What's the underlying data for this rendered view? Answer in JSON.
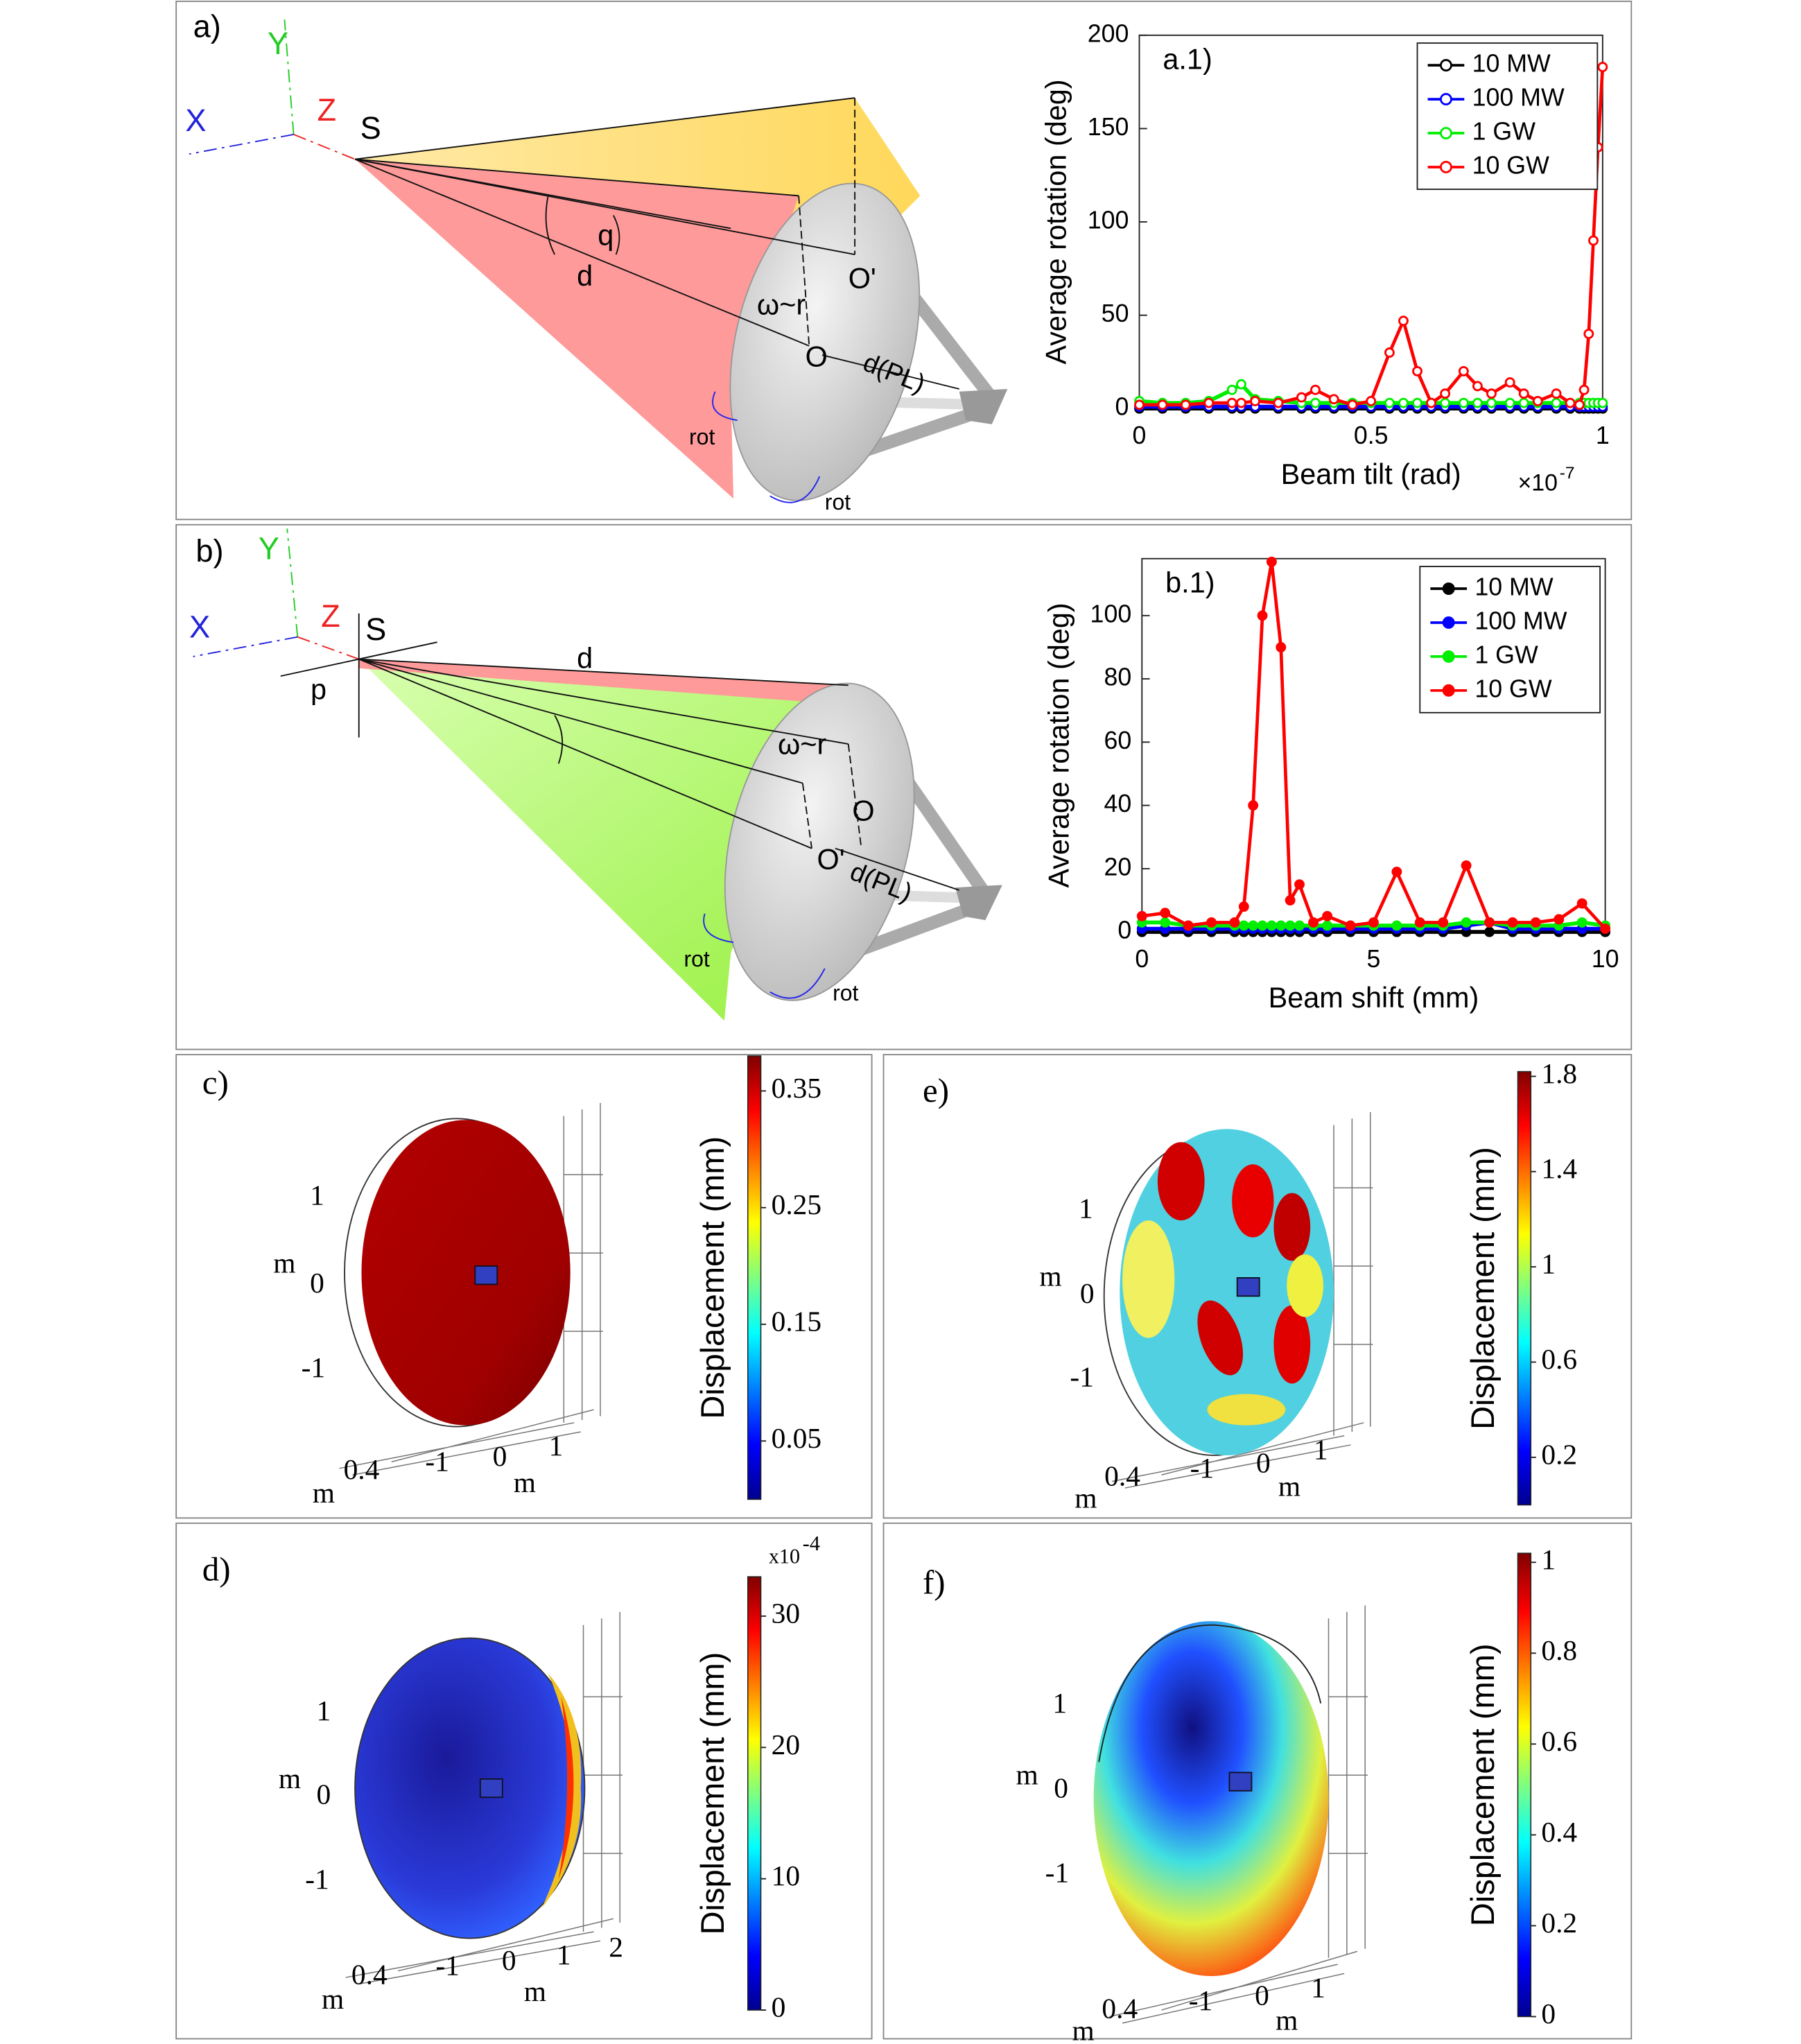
{
  "chart_data": [
    {
      "type": "line",
      "title": "a.1)",
      "xlabel": "Beam tilt (rad)",
      "ylabel": "Average rotation (deg)",
      "xscale_label": "×10",
      "xscale_exponent": "-7",
      "marker": "open",
      "legend": "upper right",
      "xlim": [
        0,
        1
      ],
      "xticks": [
        0,
        0.5,
        1
      ],
      "ylim": [
        0,
        200
      ],
      "yticks": [
        0,
        50,
        100,
        150,
        200
      ],
      "x": [
        0,
        0.05,
        0.1,
        0.15,
        0.2,
        0.22,
        0.25,
        0.3,
        0.35,
        0.38,
        0.42,
        0.46,
        0.5,
        0.54,
        0.57,
        0.6,
        0.63,
        0.66,
        0.7,
        0.73,
        0.76,
        0.8,
        0.83,
        0.86,
        0.9,
        0.93,
        0.95,
        0.96,
        0.97,
        0.98,
        0.99,
        1.0
      ],
      "series": [
        {
          "name": "10 MW",
          "color": "#000000",
          "values": [
            0,
            0,
            0,
            0,
            0,
            0,
            0,
            0,
            0,
            0,
            0,
            0,
            0,
            0,
            0,
            0,
            0,
            0,
            0,
            0,
            0,
            0,
            0,
            0,
            0,
            0,
            0,
            0,
            0,
            0,
            0,
            0
          ]
        },
        {
          "name": "100 MW",
          "color": "#0000ff",
          "values": [
            1,
            1,
            1,
            1,
            1,
            1,
            1,
            1,
            1,
            1,
            1,
            1,
            1,
            1,
            1,
            1,
            1,
            1,
            1,
            1,
            1,
            1,
            1,
            1,
            1,
            1,
            1,
            1,
            1,
            1,
            1,
            1
          ]
        },
        {
          "name": "1 GW",
          "color": "#00ee00",
          "values": [
            4,
            3,
            3,
            4,
            10,
            13,
            5,
            4,
            3,
            3,
            3,
            3,
            3,
            3,
            3,
            3,
            3,
            3,
            3,
            3,
            3,
            3,
            3,
            3,
            3,
            3,
            3,
            3,
            3,
            3,
            3,
            3
          ]
        },
        {
          "name": "10 GW",
          "color": "#ff0000",
          "values": [
            2,
            2,
            2,
            3,
            3,
            3,
            4,
            3,
            6,
            10,
            5,
            2,
            4,
            30,
            47,
            20,
            3,
            8,
            20,
            12,
            8,
            14,
            8,
            4,
            8,
            3,
            2,
            10,
            40,
            90,
            140,
            183
          ]
        }
      ]
    },
    {
      "type": "line",
      "title": "b.1)",
      "xlabel": "Beam shift (mm)",
      "ylabel": "Average rotation (deg)",
      "marker": "filled",
      "legend": "upper right",
      "xlim": [
        0,
        10
      ],
      "xticks": [
        0,
        5,
        10
      ],
      "ylim": [
        0,
        118
      ],
      "yticks": [
        0,
        20,
        40,
        60,
        80,
        100
      ],
      "x": [
        0,
        0.5,
        1,
        1.5,
        2,
        2.2,
        2.4,
        2.6,
        2.8,
        3.0,
        3.2,
        3.4,
        3.7,
        4,
        4.5,
        5,
        5.5,
        6,
        6.5,
        7,
        7.5,
        8,
        8.5,
        9,
        9.5,
        10
      ],
      "series": [
        {
          "name": "10 MW",
          "color": "#000000",
          "values": [
            0,
            0,
            0,
            0,
            0,
            0,
            0,
            0,
            0,
            0,
            0,
            0,
            0,
            0,
            0,
            0,
            0,
            0,
            0,
            0,
            0,
            0,
            0,
            0,
            0,
            0
          ]
        },
        {
          "name": "100 MW",
          "color": "#0000ff",
          "values": [
            1,
            1,
            1,
            1,
            1,
            1,
            1,
            1,
            1,
            1,
            1,
            1,
            1,
            1,
            1,
            1,
            1,
            1,
            1,
            2,
            3,
            1,
            1,
            1,
            1,
            1
          ]
        },
        {
          "name": "1 GW",
          "color": "#00ee00",
          "values": [
            3,
            3,
            2,
            2,
            2,
            2,
            2,
            2,
            2,
            2,
            2,
            2,
            2,
            2,
            2,
            2,
            2,
            2,
            2,
            3,
            3,
            2,
            2,
            2,
            3,
            2
          ]
        },
        {
          "name": "10 GW",
          "color": "#ff0000",
          "values": [
            5,
            6,
            2,
            3,
            3,
            8,
            40,
            100,
            117,
            90,
            10,
            15,
            3,
            5,
            2,
            3,
            19,
            3,
            3,
            21,
            3,
            3,
            3,
            4,
            9,
            1
          ]
        }
      ]
    },
    {
      "type": "colorbar",
      "ylabel": "Displacement (mm)",
      "ylim": [
        0,
        0.38
      ],
      "yticks": [
        0.05,
        0.15,
        0.25,
        0.35
      ]
    },
    {
      "type": "colorbar",
      "ylabel": "Displacement (mm)",
      "ylim": [
        0,
        1.82
      ],
      "yticks": [
        0.2,
        0.6,
        1,
        1.4,
        1.8
      ]
    },
    {
      "type": "colorbar",
      "ylabel": "Displacement (mm)",
      "yscale_label": "x10",
      "yscale_exponent": "-4",
      "ylim": [
        0,
        33
      ],
      "yticks": [
        0,
        10,
        20,
        30
      ]
    },
    {
      "type": "colorbar",
      "ylabel": "Displacement (mm)",
      "ylim": [
        0,
        1.02
      ],
      "yticks": [
        0,
        0.2,
        0.4,
        0.6,
        0.8,
        1
      ]
    }
  ],
  "diagrams": {
    "a": {
      "labels": [
        "a)",
        "Y",
        "X",
        "Z",
        "S",
        "q",
        "d",
        "O'",
        "ω~r",
        "O",
        "d(PL)",
        "rot",
        "rot"
      ]
    },
    "b": {
      "labels": [
        "b)",
        "Y",
        "X",
        "Z",
        "S",
        "p",
        "d",
        "ω~r",
        "O",
        "O'",
        "d(PL)",
        "rot",
        "rot"
      ]
    }
  },
  "surfaces": {
    "c": {
      "labels": [
        "c)",
        "1",
        "0",
        "-1",
        "m",
        "m",
        "0.4",
        "-1",
        "0",
        "m",
        "1"
      ]
    },
    "e": {
      "labels": [
        "e)",
        "1",
        "0",
        "-1",
        "m",
        "m",
        "0.4",
        "-1",
        "0",
        "m",
        "1"
      ]
    },
    "d": {
      "labels": [
        "d)",
        "1",
        "0",
        "-1",
        "m",
        "m",
        "0.4",
        "-1",
        "0",
        "1",
        "2",
        "m"
      ]
    },
    "f": {
      "labels": [
        "f)",
        "1",
        "0",
        "-1",
        "m",
        "m",
        "0.4",
        "-1",
        "0",
        "m",
        "1"
      ]
    }
  }
}
